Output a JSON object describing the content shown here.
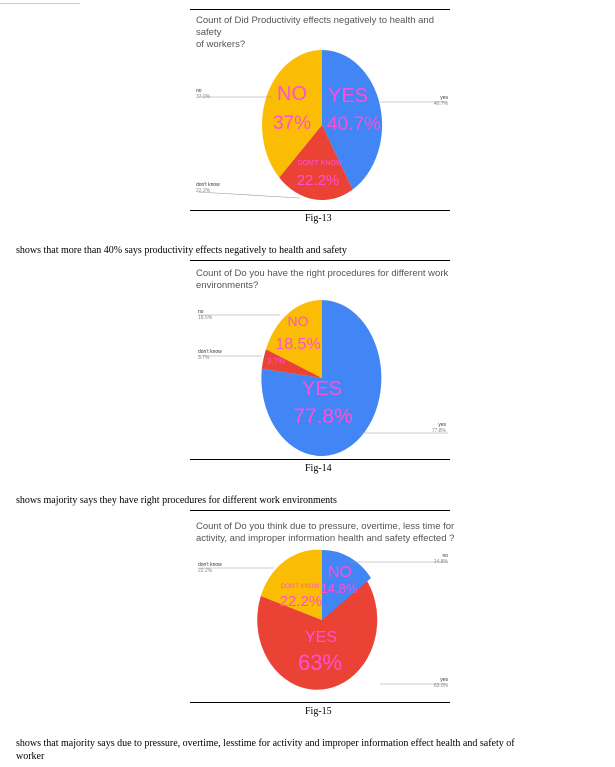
{
  "figures": [
    {
      "title_line1": "Count of Did Productivity effects negatively to health and safety",
      "title_line2": "of workers?",
      "caption": "Fig-13",
      "legend": [
        {
          "name": "no",
          "pct": "37.0%"
        },
        {
          "name": "yes",
          "pct": "40.7%"
        },
        {
          "name": "don't know",
          "pct": "22.2%"
        }
      ],
      "slice_labels": [
        {
          "name": "YES",
          "pct": "40.7%"
        },
        {
          "name": "NO",
          "pct": "37%"
        },
        {
          "name": "DON'T KNOW",
          "pct": "22.2%"
        }
      ]
    },
    {
      "title_line1": "Count of Do you have the right procedures for different work",
      "title_line2": "environments?",
      "caption": "Fig-14",
      "legend": [
        {
          "name": "no",
          "pct": "18.5%"
        },
        {
          "name": "don't know",
          "pct": "3.7%"
        },
        {
          "name": "yes",
          "pct": "77.8%"
        }
      ],
      "slice_labels": [
        {
          "name": "NO",
          "pct": "18.5%"
        },
        {
          "name": "",
          "pct": "3.7%"
        },
        {
          "name": "YES",
          "pct": "77.8%"
        }
      ]
    },
    {
      "title_line1": "Count of Do you think due to pressure, overtime, less time for",
      "title_line2": "activity, and improper information  health and safety effected ?",
      "caption": "Fig-15",
      "legend": [
        {
          "name": "don't know",
          "pct": "22.2%"
        },
        {
          "name": "no",
          "pct": "14.8%"
        },
        {
          "name": "yes",
          "pct": "63.0%"
        }
      ],
      "slice_labels": [
        {
          "name": "NO",
          "pct": "14.8%"
        },
        {
          "name": "DON'T KNOW",
          "pct": "22.2%"
        },
        {
          "name": "YES",
          "pct": "63%"
        }
      ]
    }
  ],
  "paragraphs": [
    "shows that more than 40% says productivity effects negatively to health and safety",
    "shows majority says they have right procedures for different work environments",
    "shows that majority says due to pressure, overtime, lesstime for activity and improper information effect health and safety of",
    "worker"
  ],
  "colors": {
    "yes": "#4285f4",
    "no": "#fbbc04",
    "dont_know": "#ea4335",
    "label": "#ff4fd8"
  },
  "chart_data": [
    {
      "type": "pie",
      "title": "Count of Did Productivity effects negatively to health and safety of workers?",
      "categories": [
        "yes",
        "no",
        "don't know"
      ],
      "values": [
        40.7,
        37.0,
        22.2
      ]
    },
    {
      "type": "pie",
      "title": "Count of Do you have the right procedures for different work environments?",
      "categories": [
        "yes",
        "no",
        "don't know"
      ],
      "values": [
        77.8,
        18.5,
        3.7
      ]
    },
    {
      "type": "pie",
      "title": "Count of Do you think due to pressure, overtime, less time for activity, and improper information  health and safety effected ?",
      "categories": [
        "yes",
        "no",
        "don't know"
      ],
      "values": [
        63.0,
        14.8,
        22.2
      ]
    }
  ]
}
